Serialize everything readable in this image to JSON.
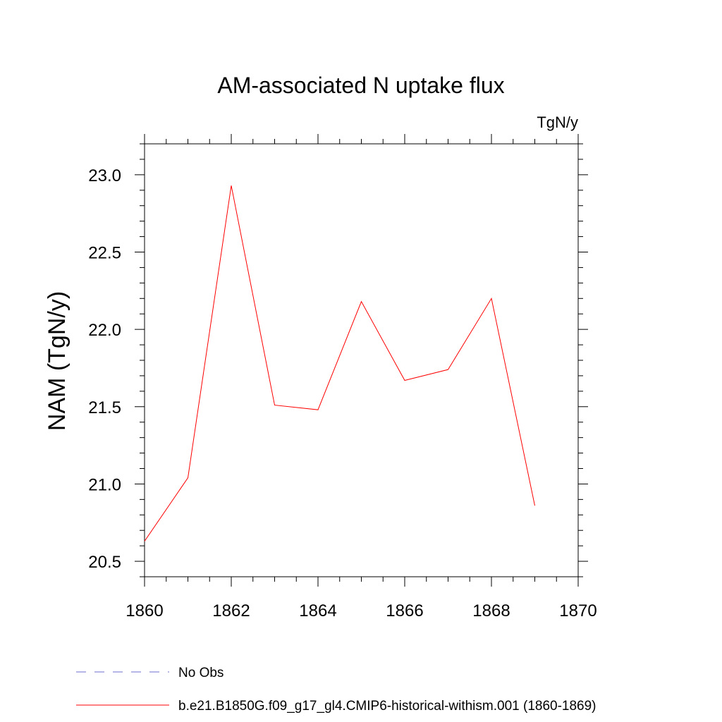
{
  "chart_data": {
    "type": "line",
    "title": "AM-associated N uptake flux",
    "units_label": "TgN/y",
    "ylabel": "NAM  (TgN/y)",
    "xlabel": "",
    "xlim": [
      1860,
      1870
    ],
    "ylim": [
      20.4,
      23.2
    ],
    "x_ticks": [
      1860,
      1862,
      1864,
      1866,
      1868,
      1870
    ],
    "x_tick_labels": [
      "1860",
      "1862",
      "1864",
      "1866",
      "1868",
      "1870"
    ],
    "y_ticks": [
      20.5,
      21.0,
      21.5,
      22.0,
      22.5,
      23.0
    ],
    "y_tick_labels": [
      "20.5",
      "21.0",
      "21.5",
      "22.0",
      "22.5",
      "23.0"
    ],
    "grid": false,
    "legend_position": "bottom",
    "series": [
      {
        "name": "b.e21.B1850G.f09_g17_gl4.CMIP6-historical-withism.001 (1860-1869)",
        "color": "#ff0000",
        "style": "solid",
        "x": [
          1860,
          1861,
          1862,
          1863,
          1864,
          1865,
          1866,
          1867,
          1868,
          1869
        ],
        "y": [
          20.63,
          21.04,
          22.93,
          21.51,
          21.48,
          22.18,
          21.67,
          21.74,
          22.2,
          20.86
        ]
      },
      {
        "name": "No Obs",
        "color": "#6f6fcf",
        "style": "dashed",
        "x": [],
        "y": []
      }
    ]
  }
}
